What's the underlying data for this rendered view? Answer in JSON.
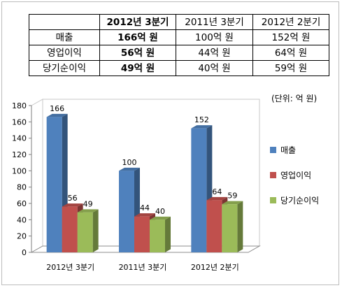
{
  "table": {
    "headers": [
      "",
      "2012년 3분기",
      "2011년 3분기",
      "2012년 2분기"
    ],
    "rows": [
      {
        "label": "매출",
        "cells": [
          "166억 원",
          "100억 원",
          "152억 원"
        ]
      },
      {
        "label": "영업이익",
        "cells": [
          "56억 원",
          "44억 원",
          "64억 원"
        ]
      },
      {
        "label": "당기순이익",
        "cells": [
          "49억 원",
          "40억 원",
          "59억 원"
        ]
      }
    ]
  },
  "unit_note": "(단위: 억 원)",
  "chart_data": {
    "type": "bar",
    "categories": [
      "2012년 3분기",
      "2011년 3분기",
      "2012년 2분기"
    ],
    "series": [
      {
        "name": "매출",
        "values": [
          166,
          100,
          152
        ],
        "color": "#4f81bd"
      },
      {
        "name": "영업이익",
        "values": [
          56,
          44,
          64
        ],
        "color": "#c0504d"
      },
      {
        "name": "당기순이익",
        "values": [
          49,
          40,
          59
        ],
        "color": "#9bbb59"
      }
    ],
    "ylim": [
      0,
      180
    ],
    "yticks": [
      0,
      20,
      40,
      60,
      80,
      100,
      120,
      140,
      160,
      180
    ],
    "grid": false,
    "legend": "right",
    "data_labels": true,
    "style": "3d-clustered-column"
  }
}
